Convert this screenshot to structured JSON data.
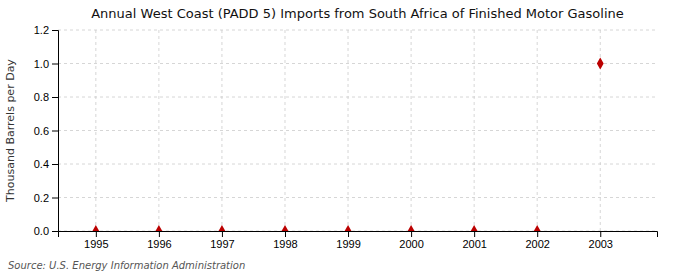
{
  "chart_data": {
    "type": "scatter",
    "title": "Annual West Coast (PADD 5) Imports from South Africa of Finished Motor Gasoline",
    "y_label": "Thousand Barrels per Day",
    "source": "Source: U.S. Energy Information Administration",
    "x": [
      1995,
      1996,
      1997,
      1998,
      1999,
      2000,
      2001,
      2002,
      2003
    ],
    "values": [
      0.0,
      0.0,
      0.0,
      0.0,
      0.0,
      0.0,
      0.0,
      0.0,
      1.0
    ],
    "color": "#bb0000",
    "marker": "diamond",
    "xlim": [
      1994.4,
      2003.9
    ],
    "xticks": [
      1995,
      1996,
      1997,
      1998,
      1999,
      2000,
      2001,
      2002,
      2003
    ],
    "ylim": [
      0.0,
      1.2
    ],
    "yticks": [
      {
        "value": 0.0,
        "label": "0.0"
      },
      0.2,
      0.4,
      0.6,
      0.8,
      {
        "value": 1.0,
        "label": "1.0"
      },
      1.2
    ],
    "grid": true
  }
}
